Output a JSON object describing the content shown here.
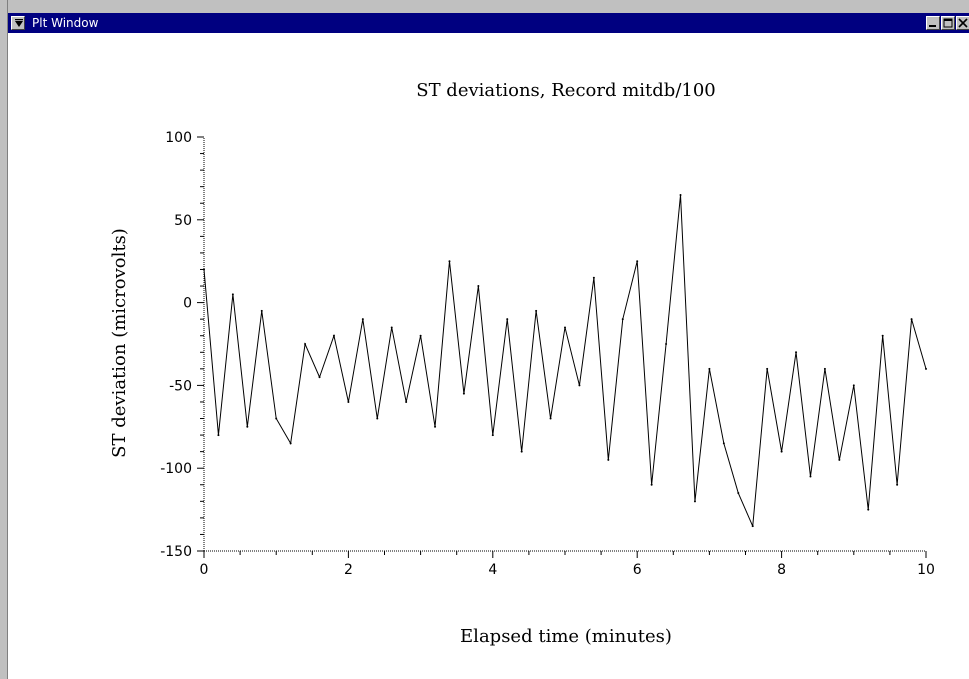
{
  "window": {
    "title": "Plt Window",
    "icons": [
      "window-menu-icon",
      "minimize-icon",
      "maximize-icon",
      "close-icon"
    ]
  },
  "chart_data": {
    "type": "line",
    "title": "ST deviations, Record mitdb/100",
    "xlabel": "Elapsed time (minutes)",
    "ylabel": "ST deviation (microvolts)",
    "xlim": [
      0,
      10
    ],
    "ylim": [
      -150,
      100
    ],
    "x_ticks": [
      "0",
      "2",
      "4",
      "6",
      "8",
      "10"
    ],
    "y_ticks": [
      "100",
      "50",
      "0",
      "-50",
      "-100",
      "-150"
    ],
    "grid": false,
    "legend": "none",
    "line_color": "#000000",
    "series": [
      {
        "x": [
          0.0,
          0.2,
          0.4,
          0.6,
          0.8,
          1.0,
          1.2,
          1.4,
          1.6,
          1.8,
          2.0,
          2.2,
          2.4,
          2.6,
          2.8,
          3.0,
          3.2,
          3.4,
          3.6,
          3.8,
          4.0,
          4.2,
          4.4,
          4.6,
          4.8,
          5.0,
          5.2,
          5.4,
          5.6,
          5.8,
          6.0,
          6.2,
          6.4,
          6.6,
          6.8,
          7.0,
          7.2,
          7.4,
          7.6,
          7.8,
          8.0,
          8.2,
          8.4,
          8.6,
          8.8,
          9.0,
          9.2,
          9.4,
          9.6,
          9.8,
          10.0
        ],
        "y": [
          20,
          -80,
          5,
          -75,
          -5,
          -70,
          -85,
          -25,
          -45,
          -20,
          -60,
          -10,
          -70,
          -15,
          -60,
          -20,
          -75,
          25,
          -55,
          10,
          -80,
          -10,
          -90,
          -5,
          -70,
          -15,
          -50,
          15,
          -95,
          -10,
          25,
          -110,
          -25,
          65,
          -120,
          -40,
          -85,
          -115,
          -135,
          -40,
          -90,
          -30,
          -105,
          -40,
          -95,
          -50,
          -125,
          -20,
          -110,
          -10,
          -40
        ]
      }
    ]
  }
}
